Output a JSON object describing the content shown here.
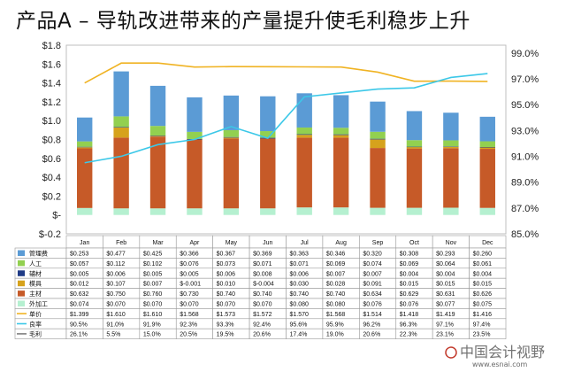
{
  "title": "产品A – 导轨改进带来的产量提升使毛利稳步上升",
  "watermark": {
    "text": "中国会计视野",
    "url": "www.esnai.com"
  },
  "colors": {
    "管理费": "#5b9bd5",
    "人工": "#92d050",
    "辅材": "#1f3b86",
    "模具": "#d6a21c",
    "主材": "#c65a28",
    "外加工": "#b5f0d0",
    "单价": "#f0b323",
    "良率": "#3cc8e8",
    "毛利": "#7f7f7f"
  },
  "chart_data": {
    "type": "bar",
    "stacked": true,
    "categories": [
      "Jan",
      "Feb",
      "Mar",
      "Apr",
      "May",
      "Jun",
      "Jul",
      "Aug",
      "Sep",
      "Oct",
      "Nov",
      "Dec"
    ],
    "y_left": {
      "ticks": [
        "$1.8",
        "$1.6",
        "$1.4",
        "$1.2",
        "$1.0",
        "$0.8",
        "$0.6",
        "$0.4",
        "$0.2",
        "$-",
        "$-0.2"
      ],
      "ylim": [
        -0.2,
        1.8
      ]
    },
    "y_right": {
      "ticks": [
        "99.0%",
        "97.0%",
        "95.0%",
        "93.0%",
        "91.0%",
        "89.0%",
        "87.0%",
        "85.0%"
      ],
      "ylim": [
        85.0,
        99.6
      ]
    },
    "series": [
      {
        "name": "管理费",
        "kind": "bar",
        "labels": [
          "$0.253",
          "$0.477",
          "$0.425",
          "$0.366",
          "$0.367",
          "$0.369",
          "$0.363",
          "$0.346",
          "$0.320",
          "$0.308",
          "$0.293",
          "$0.260"
        ],
        "values": [
          0.253,
          0.477,
          0.425,
          0.366,
          0.367,
          0.369,
          0.363,
          0.346,
          0.32,
          0.308,
          0.293,
          0.26
        ]
      },
      {
        "name": "人工",
        "kind": "bar",
        "labels": [
          "$0.057",
          "$0.112",
          "$0.102",
          "$0.076",
          "$0.073",
          "$0.071",
          "$0.071",
          "$0.069",
          "$0.074",
          "$0.069",
          "$0.064",
          "$0.061"
        ],
        "values": [
          0.057,
          0.112,
          0.102,
          0.076,
          0.073,
          0.071,
          0.071,
          0.069,
          0.074,
          0.069,
          0.064,
          0.061
        ]
      },
      {
        "name": "辅材",
        "kind": "bar",
        "labels": [
          "$0.005",
          "$0.006",
          "$0.005",
          "$0.005",
          "$0.006",
          "$0.008",
          "$0.006",
          "$0.007",
          "$0.007",
          "$0.004",
          "$0.004",
          "$0.004"
        ],
        "values": [
          0.005,
          0.006,
          0.005,
          0.005,
          0.006,
          0.008,
          0.006,
          0.007,
          0.007,
          0.004,
          0.004,
          0.004
        ]
      },
      {
        "name": "模具",
        "kind": "bar",
        "labels": [
          "$0.012",
          "$0.107",
          "$0.007",
          "$-0.001",
          "$0.010",
          "$-0.004",
          "$0.030",
          "$0.028",
          "$0.091",
          "$0.015",
          "$0.015",
          "$0.015"
        ],
        "values": [
          0.012,
          0.107,
          0.007,
          -0.001,
          0.01,
          -0.004,
          0.03,
          0.028,
          0.091,
          0.015,
          0.015,
          0.015
        ]
      },
      {
        "name": "主材",
        "kind": "bar",
        "labels": [
          "$0.632",
          "$0.750",
          "$0.760",
          "$0.730",
          "$0.740",
          "$0.740",
          "$0.740",
          "$0.740",
          "$0.634",
          "$0.629",
          "$0.631",
          "$0.626"
        ],
        "values": [
          0.632,
          0.75,
          0.76,
          0.73,
          0.74,
          0.74,
          0.74,
          0.74,
          0.634,
          0.629,
          0.631,
          0.626
        ]
      },
      {
        "name": "外加工",
        "kind": "bar",
        "labels": [
          "$0.074",
          "$0.070",
          "$0.070",
          "$0.070",
          "$0.070",
          "$0.070",
          "$0.080",
          "$0.080",
          "$0.076",
          "$0.076",
          "$0.077",
          "$0.075"
        ],
        "values": [
          0.074,
          0.07,
          0.07,
          0.07,
          0.07,
          0.07,
          0.08,
          0.08,
          0.076,
          0.076,
          0.077,
          0.075
        ]
      },
      {
        "name": "单价",
        "kind": "line",
        "axis": "left",
        "labels": [
          "$1.399",
          "$1.610",
          "$1.610",
          "$1.568",
          "$1.573",
          "$1.572",
          "$1.570",
          "$1.568",
          "$1.514",
          "$1.418",
          "$1.419",
          "$1.416"
        ],
        "values": [
          1.399,
          1.61,
          1.61,
          1.568,
          1.573,
          1.572,
          1.57,
          1.568,
          1.514,
          1.418,
          1.419,
          1.416
        ]
      },
      {
        "name": "良率",
        "kind": "line",
        "axis": "right",
        "labels": [
          "90.5%",
          "91.0%",
          "91.9%",
          "92.3%",
          "93.3%",
          "92.4%",
          "95.6%",
          "95.9%",
          "96.2%",
          "96.3%",
          "97.1%",
          "97.4%"
        ],
        "values": [
          90.5,
          91.0,
          91.9,
          92.3,
          93.3,
          92.4,
          95.6,
          95.9,
          96.2,
          96.3,
          97.1,
          97.4
        ]
      },
      {
        "name": "毛利",
        "kind": "none",
        "labels": [
          "26.1%",
          "5.5%",
          "15.0%",
          "20.5%",
          "19.5%",
          "20.6%",
          "17.4%",
          "19.0%",
          "20.6%",
          "22.3%",
          "23.1%",
          "23.5%"
        ],
        "values": [
          26.1,
          5.5,
          15.0,
          20.5,
          19.5,
          20.6,
          17.4,
          19.0,
          20.6,
          22.3,
          23.1,
          23.5
        ]
      }
    ]
  }
}
